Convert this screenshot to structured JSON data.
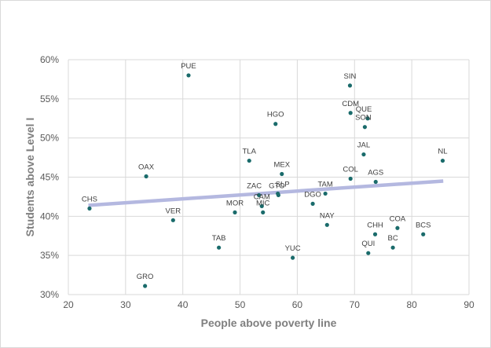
{
  "chart_data": {
    "type": "scatter",
    "title": "",
    "xlabel": "People above poverty line",
    "ylabel": "Students above Level I",
    "xlim": [
      20,
      90
    ],
    "ylim": [
      30,
      60
    ],
    "x_ticks": [
      20,
      30,
      40,
      50,
      60,
      70,
      80,
      90
    ],
    "y_ticks": [
      30,
      35,
      40,
      45,
      50,
      55,
      60
    ],
    "y_tick_format": "percent",
    "grid": true,
    "legend": "none",
    "marker_color": "#1a6b6b",
    "trendline": {
      "type": "linear",
      "color": "#b4b8e0",
      "x": [
        23.5,
        85.5
      ],
      "y": [
        41.4,
        44.5
      ]
    },
    "points": [
      {
        "label": "PUE",
        "x": 41.0,
        "y": 58.0
      },
      {
        "label": "SIN",
        "x": 69.2,
        "y": 56.7
      },
      {
        "label": "CDM",
        "x": 69.3,
        "y": 53.2
      },
      {
        "label": "QUE",
        "x": 72.3,
        "y": 52.5
      },
      {
        "label": "SON",
        "x": 71.8,
        "y": 51.4
      },
      {
        "label": "HGO",
        "x": 56.2,
        "y": 51.8
      },
      {
        "label": "TLA",
        "x": 51.6,
        "y": 47.1
      },
      {
        "label": "NL",
        "x": 85.4,
        "y": 47.1
      },
      {
        "label": "JAL",
        "x": 71.6,
        "y": 47.9
      },
      {
        "label": "OAX",
        "x": 33.6,
        "y": 45.1
      },
      {
        "label": "MEX",
        "x": 57.3,
        "y": 45.4
      },
      {
        "label": "COL",
        "x": 69.3,
        "y": 44.8
      },
      {
        "label": "AGS",
        "x": 73.7,
        "y": 44.4
      },
      {
        "label": "ZAC",
        "x": 53.3,
        "y": 42.7
      },
      {
        "label": "SLP",
        "x": 56.6,
        "y": 42.9
      },
      {
        "label": "GTO",
        "x": 56.7,
        "y": 42.7
      },
      {
        "label": "TAM",
        "x": 64.9,
        "y": 42.9
      },
      {
        "label": "CAM",
        "x": 53.8,
        "y": 41.3
      },
      {
        "label": "DGO",
        "x": 62.7,
        "y": 41.6
      },
      {
        "label": "MIC",
        "x": 54.0,
        "y": 40.5
      },
      {
        "label": "CHS",
        "x": 23.7,
        "y": 41.0
      },
      {
        "label": "MOR",
        "x": 49.1,
        "y": 40.5
      },
      {
        "label": "VER",
        "x": 38.3,
        "y": 39.5
      },
      {
        "label": "NAY",
        "x": 65.2,
        "y": 38.9
      },
      {
        "label": "COA",
        "x": 77.5,
        "y": 38.5
      },
      {
        "label": "CHH",
        "x": 73.6,
        "y": 37.7
      },
      {
        "label": "BCS",
        "x": 82.0,
        "y": 37.7
      },
      {
        "label": "TAB",
        "x": 46.3,
        "y": 36.0
      },
      {
        "label": "BC",
        "x": 76.7,
        "y": 36.0
      },
      {
        "label": "QUI",
        "x": 72.4,
        "y": 35.3
      },
      {
        "label": "YUC",
        "x": 59.2,
        "y": 34.7
      },
      {
        "label": "GRO",
        "x": 33.4,
        "y": 31.1
      }
    ]
  }
}
